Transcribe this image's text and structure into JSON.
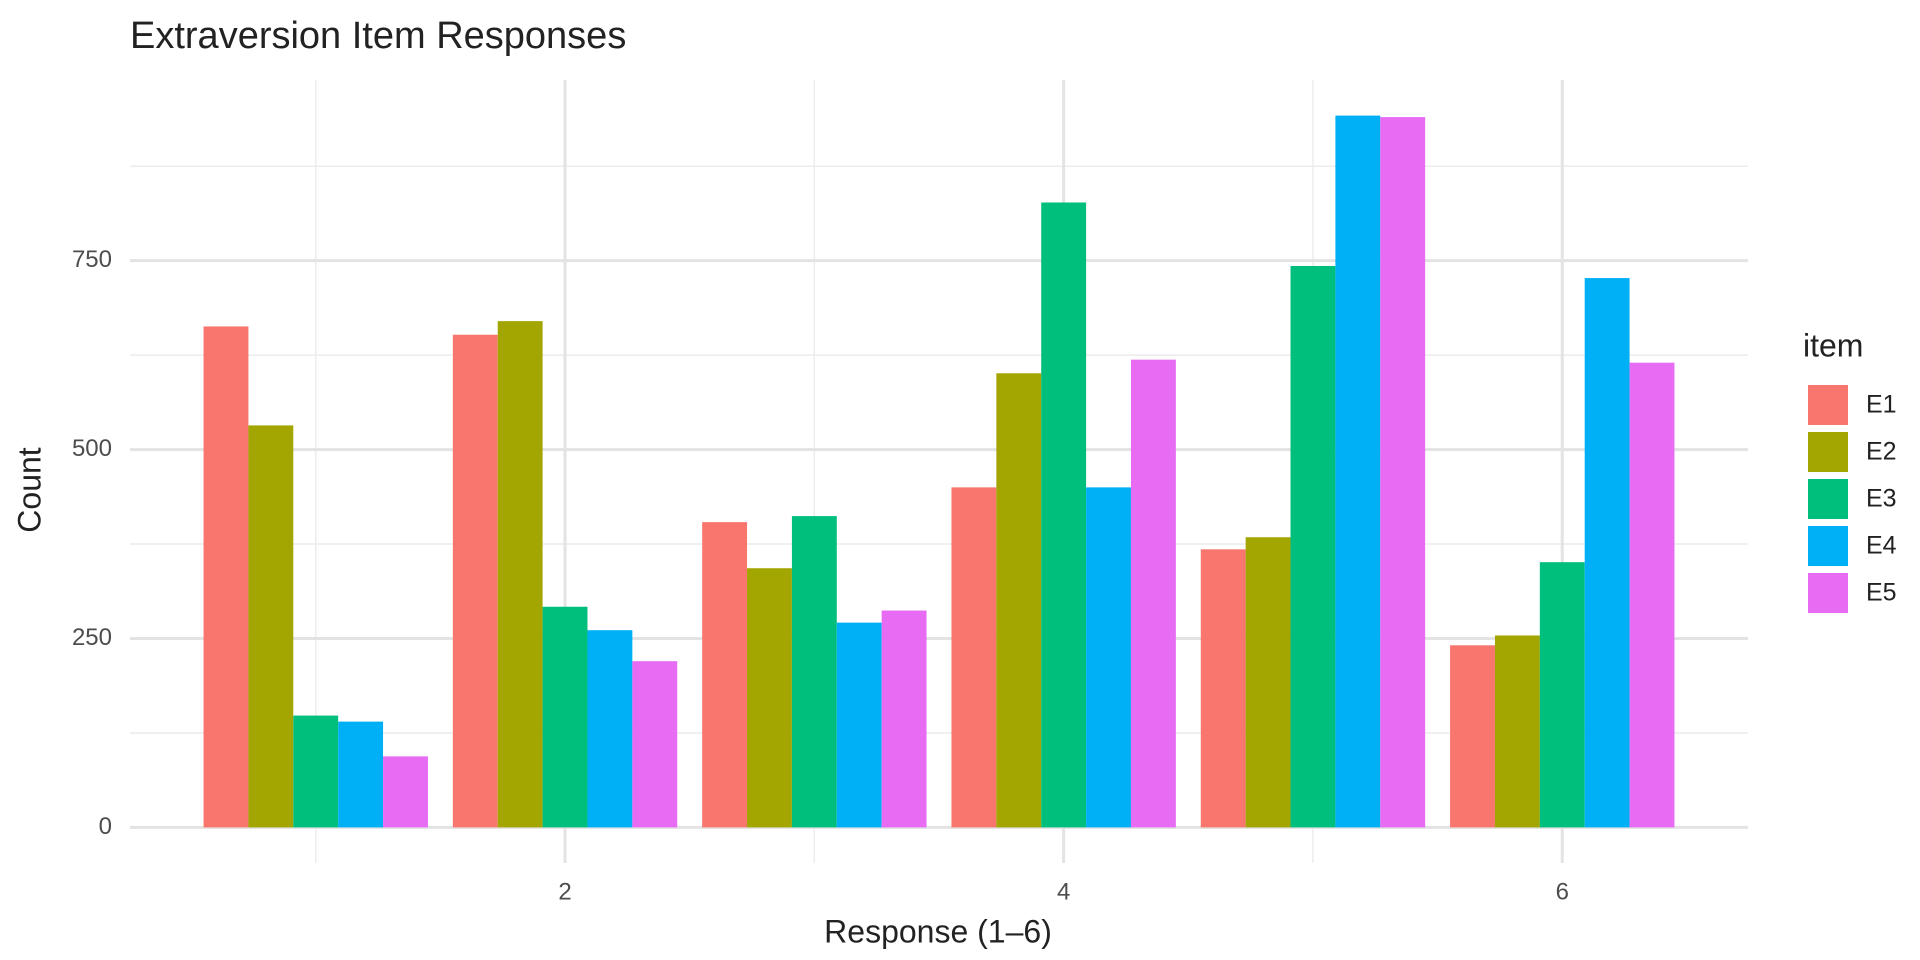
{
  "chart_data": {
    "type": "bar",
    "title": "Extraversion Item Responses",
    "x_label": "Response (1–6)",
    "y_label": "Count",
    "legend_title": "item",
    "x": [
      1,
      2,
      3,
      4,
      5,
      6
    ],
    "series": [
      {
        "name": "E1",
        "color": "#F8766D",
        "values": [
          663,
          652,
          404,
          450,
          368,
          241
        ]
      },
      {
        "name": "E2",
        "color": "#A3A500",
        "values": [
          532,
          670,
          343,
          601,
          384,
          254
        ]
      },
      {
        "name": "E3",
        "color": "#00BF7D",
        "values": [
          148,
          292,
          412,
          827,
          743,
          351
        ]
      },
      {
        "name": "E4",
        "color": "#00B0F6",
        "values": [
          140,
          261,
          271,
          450,
          942,
          727
        ]
      },
      {
        "name": "E5",
        "color": "#E76BF3",
        "values": [
          94,
          220,
          287,
          619,
          940,
          615
        ]
      }
    ],
    "xlim": [
      0.255,
      6.745
    ],
    "ylim": [
      -47.1,
      989.1
    ],
    "xticks": [
      2,
      4,
      6
    ],
    "yticks": [
      0,
      250,
      500,
      750
    ],
    "x_minor_grid": [
      1,
      3,
      5
    ],
    "y_minor_grid": [
      125,
      375,
      625,
      875
    ],
    "grid": true,
    "legend": "right"
  }
}
